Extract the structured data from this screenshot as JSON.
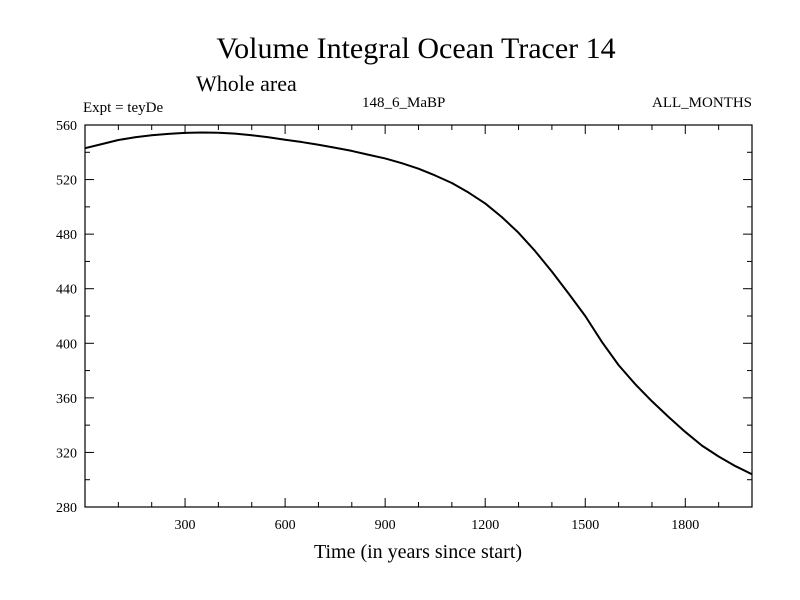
{
  "chart_data": {
    "type": "line",
    "title": "Volume Integral Ocean Tracer 14",
    "subtitle": "Whole area",
    "annotations": {
      "experiment": "Expt = teyDe",
      "run": "148_6_MaBP",
      "months": "ALL_MONTHS"
    },
    "xlabel": "Time (in years since start)",
    "ylabel": "",
    "xlim": [
      0,
      2000
    ],
    "ylim": [
      280,
      560
    ],
    "xticks": [
      300,
      600,
      900,
      1200,
      1500,
      1800
    ],
    "yticks": [
      280,
      320,
      360,
      400,
      440,
      480,
      520,
      560
    ],
    "grid": false,
    "series": [
      {
        "x": [
          0,
          50,
          100,
          150,
          200,
          250,
          300,
          350,
          400,
          450,
          500,
          550,
          600,
          650,
          700,
          750,
          800,
          850,
          900,
          950,
          1000,
          1050,
          1100,
          1150,
          1200,
          1250,
          1300,
          1350,
          1400,
          1450,
          1500,
          1550,
          1600,
          1650,
          1700,
          1750,
          1800,
          1850,
          1900,
          1950,
          2000
        ],
        "y": [
          543,
          546,
          549,
          551,
          552.5,
          553.5,
          554.2,
          554.5,
          554.3,
          553.7,
          552.5,
          551,
          549.2,
          547.5,
          545.5,
          543.3,
          541,
          538.2,
          535.5,
          532,
          528,
          523,
          517.5,
          510.5,
          502.5,
          492.5,
          481,
          467.5,
          452.5,
          436.5,
          420,
          401,
          384,
          370,
          357.5,
          346,
          335,
          325,
          317,
          310,
          304
        ]
      }
    ]
  }
}
